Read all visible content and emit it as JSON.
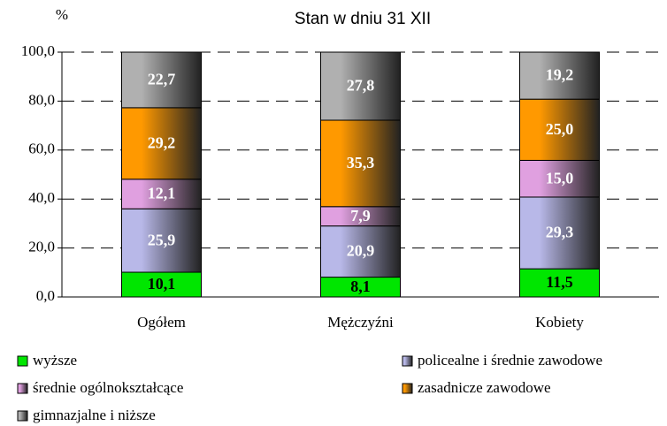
{
  "chart_data": {
    "type": "stacked_bar",
    "subtitle": "Stan w dniu 31 XII",
    "y_label": "%",
    "categories": [
      "Ogółem",
      "Mężczyźni",
      "Kobiety"
    ],
    "series": [
      {
        "name": "wyższe",
        "color": "#00e600",
        "values": [
          10.1,
          8.1,
          11.5
        ],
        "value_labels": [
          "10,1",
          "8,1",
          "11,5"
        ]
      },
      {
        "name": "policealne i średnie zawodowe",
        "color": "#b8b8e8",
        "values": [
          25.9,
          20.9,
          29.3
        ],
        "value_labels": [
          "25,9",
          "20,9",
          "29,3"
        ]
      },
      {
        "name": "średnie ogólnokształcące",
        "color": "#e0a0e0",
        "values": [
          12.1,
          7.9,
          15.0
        ],
        "value_labels": [
          "12,1",
          "7,9",
          "15,0"
        ]
      },
      {
        "name": "zasadnicze zawodowe",
        "color": "#ff9900",
        "values": [
          29.2,
          35.3,
          25.0
        ],
        "value_labels": [
          "29,2",
          "35,3",
          "25,0"
        ]
      },
      {
        "name": "gimnazjalne i niższe",
        "color": "#b0b0b0",
        "values": [
          22.7,
          27.8,
          19.2
        ],
        "value_labels": [
          "22,7",
          "27,8",
          "19,2"
        ]
      }
    ],
    "ylim": [
      0,
      100
    ],
    "yticks": [
      {
        "value": 0,
        "label": "0,0"
      },
      {
        "value": 20,
        "label": "20,0"
      },
      {
        "value": 40,
        "label": "40,0"
      },
      {
        "value": 60,
        "label": "60,0"
      },
      {
        "value": 80,
        "label": "80,0"
      },
      {
        "value": 100,
        "label": "100,0"
      }
    ],
    "grid": true
  }
}
